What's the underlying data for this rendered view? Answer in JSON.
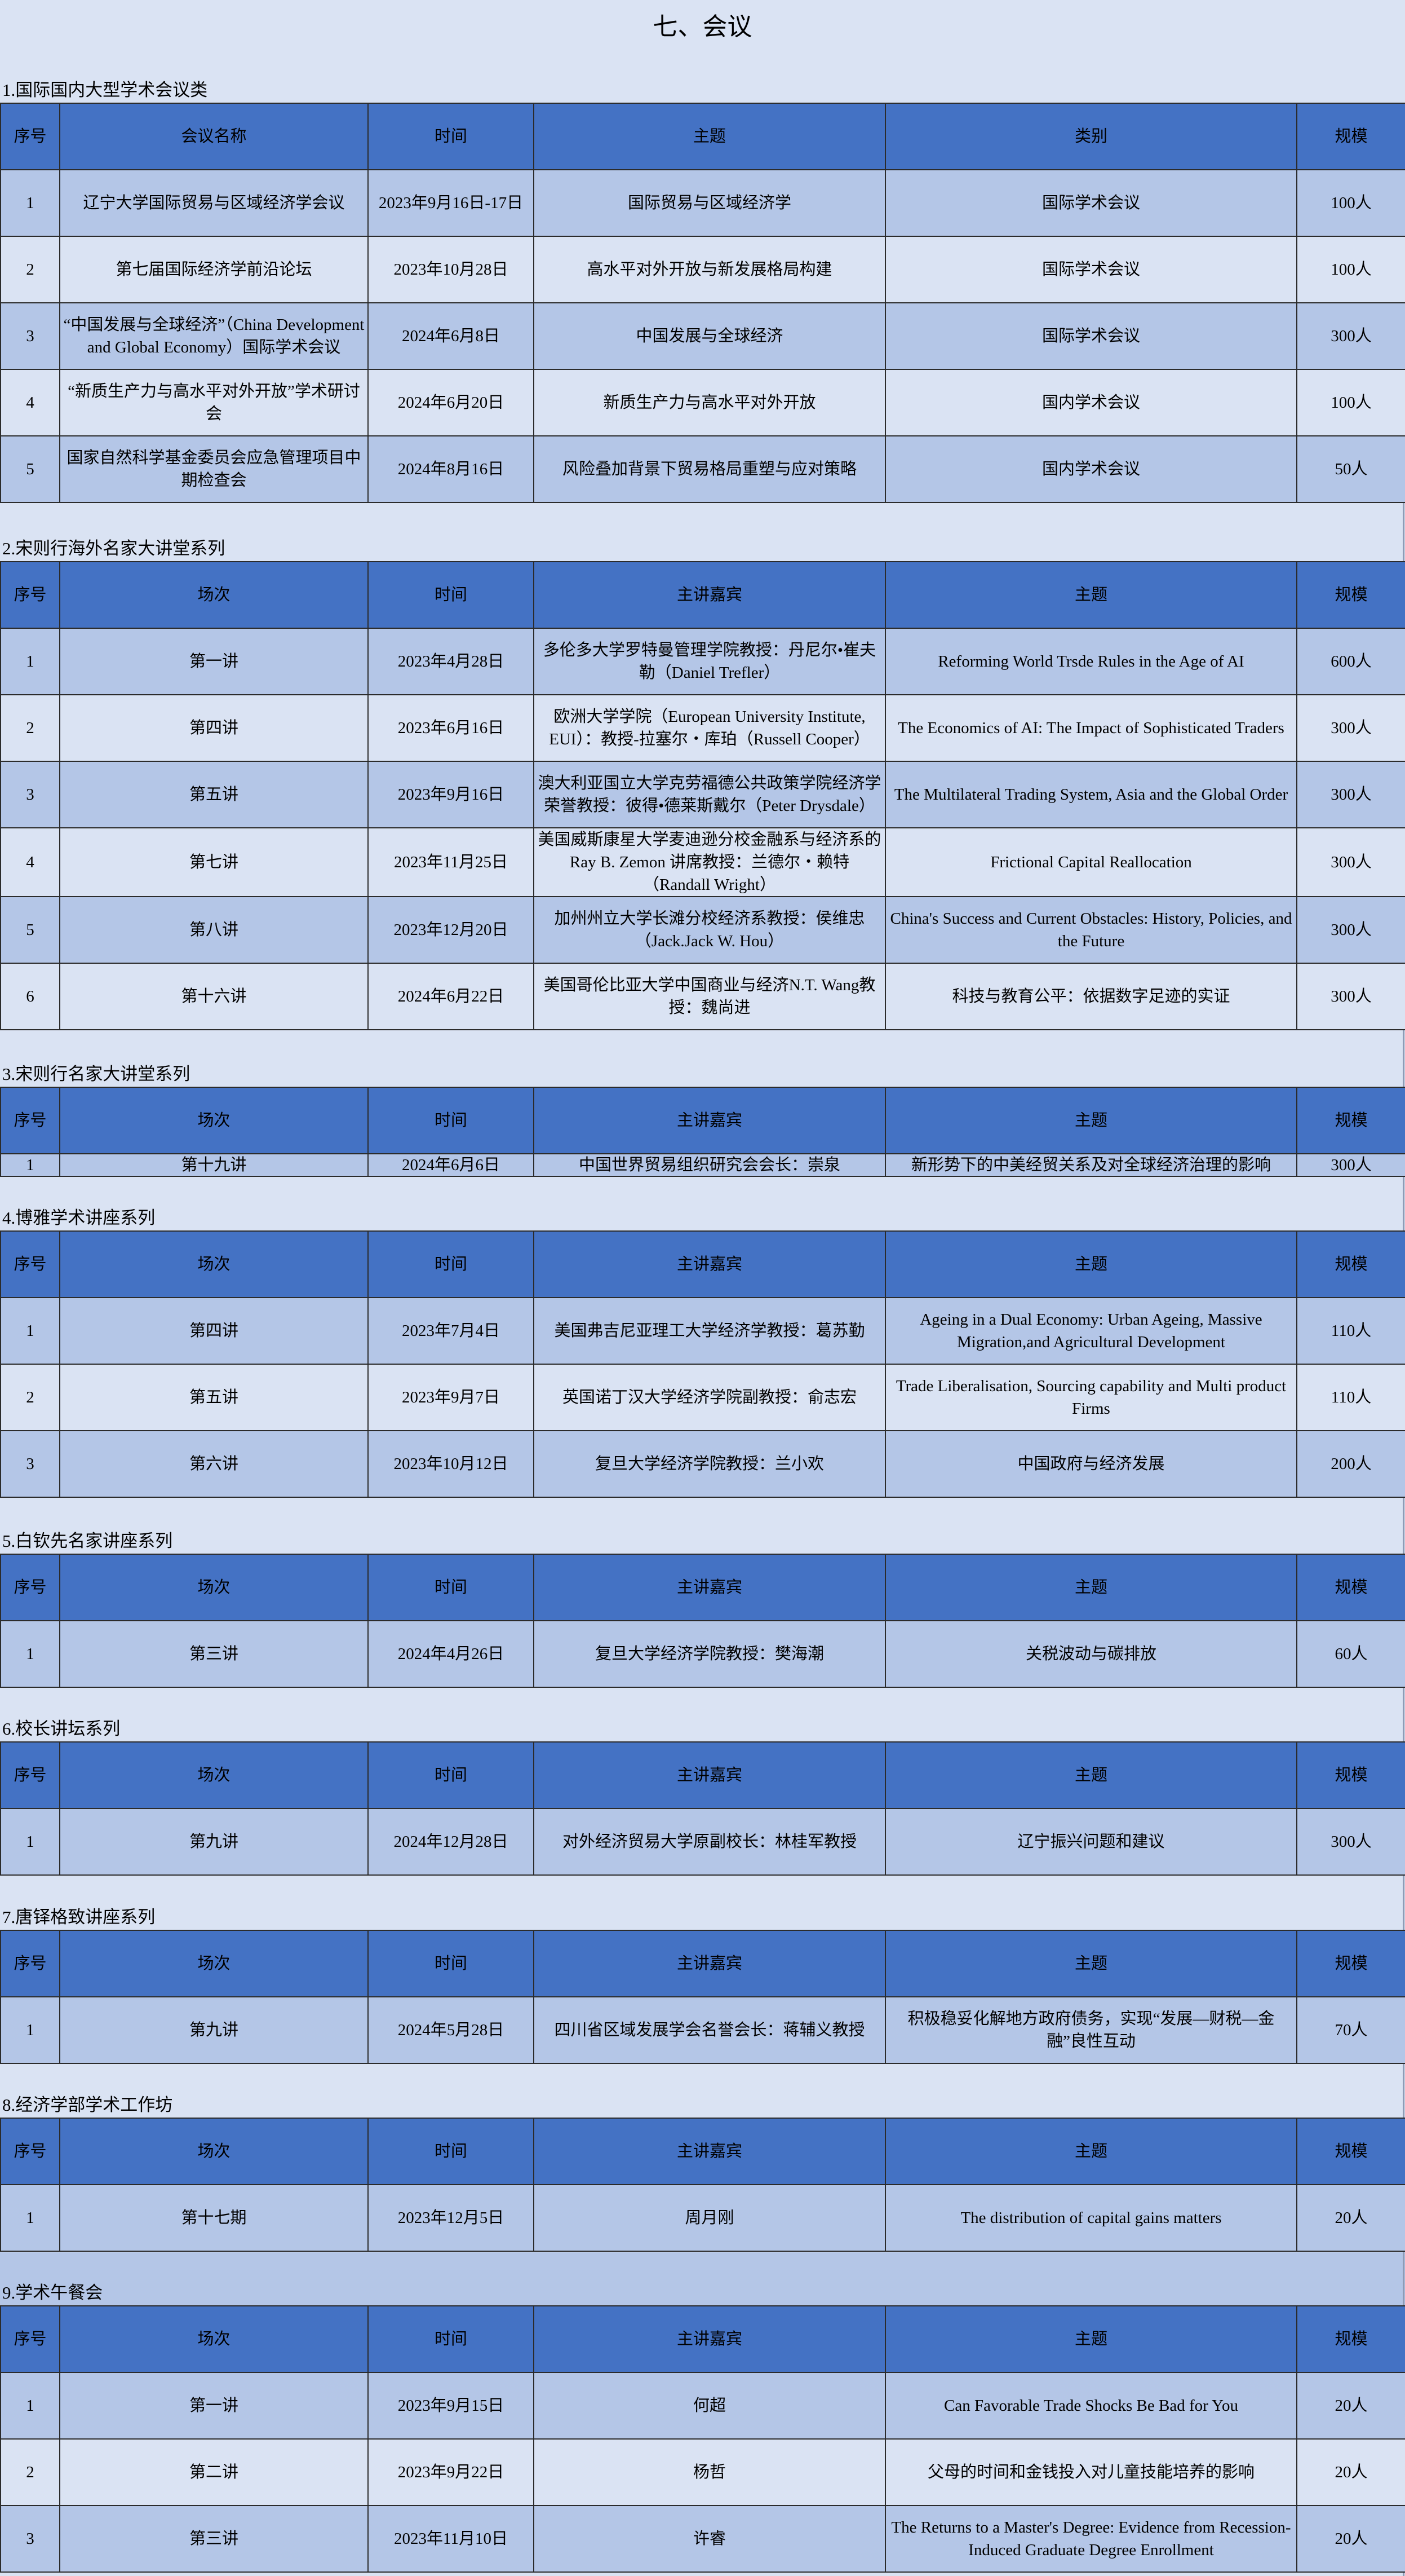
{
  "title": "七、会议",
  "colors": {
    "header_bg": "#4472c4",
    "row_odd": "#b4c6e7",
    "row_even": "#dae3f3",
    "page_bg": "#dae3f3"
  },
  "sections": [
    {
      "label": "1.国际国内大型学术会议类",
      "headers": [
        "序号",
        "会议名称",
        "时间",
        "主题",
        "类别",
        "规模"
      ],
      "rows": [
        [
          "1",
          "辽宁大学国际贸易与区域经济学会议",
          "2023年9月16日-17日",
          "国际贸易与区域经济学",
          "国际学术会议",
          "100人"
        ],
        [
          "2",
          "第七届国际经济学前沿论坛",
          "2023年10月28日",
          "高水平对外开放与新发展格局构建",
          "国际学术会议",
          "100人"
        ],
        [
          "3",
          "“中国发展与全球经济”（China Development and Global Economy）国际学术会议",
          "2024年6月8日",
          "中国发展与全球经济",
          "国际学术会议",
          "300人"
        ],
        [
          "4",
          "“新质生产力与高水平对外开放”学术研讨会",
          "2024年6月20日",
          "新质生产力与高水平对外开放",
          "国内学术会议",
          "100人"
        ],
        [
          "5",
          "国家自然科学基金委员会应急管理项目中期检查会",
          "2024年8月16日",
          "风险叠加背景下贸易格局重塑与应对策略",
          "国内学术会议",
          "50人"
        ]
      ]
    },
    {
      "label": "2.宋则行海外名家大讲堂系列",
      "headers": [
        "序号",
        "场次",
        "时间",
        "主讲嘉宾",
        "主题",
        "规模"
      ],
      "rows": [
        [
          "1",
          "第一讲",
          "2023年4月28日",
          "多伦多大学罗特曼管理学院教授：丹尼尔•崔夫勒（Daniel Trefler）",
          "Reforming World Trsde Rules in the Age of AI",
          "600人"
        ],
        [
          "2",
          "第四讲",
          "2023年6月16日",
          "欧洲大学学院（European University Institute, EUI）：教授-拉塞尔・库珀（Russell Cooper）",
          "The Economics of AI: The Impact of Sophisticated Traders",
          "300人"
        ],
        [
          "3",
          "第五讲",
          "2023年9月16日",
          "澳大利亚国立大学克劳福德公共政策学院经济学荣誉教授：彼得•德莱斯戴尔（Peter Drysdale）",
          "The Multilateral Trading System, Asia and the Global Order",
          "300人"
        ],
        [
          "4",
          "第七讲",
          "2023年11月25日",
          "美国威斯康星大学麦迪逊分校金融系与经济系的Ray B. Zemon 讲席教授：兰德尔・赖特（Randall Wright）",
          "Frictional Capital Reallocation",
          "300人"
        ],
        [
          "5",
          "第八讲",
          "2023年12月20日",
          "加州州立大学长滩分校经济系教授：侯维忠（Jack.Jack W. Hou）",
          "China's Success and Current Obstacles: History, Policies, and the Future",
          "300人"
        ],
        [
          "6",
          "第十六讲",
          "2024年6月22日",
          "美国哥伦比亚大学中国商业与经济N.T. Wang教授：魏尚进",
          "科技与教育公平：依据数字足迹的实证",
          "300人"
        ]
      ]
    },
    {
      "label": "3.宋则行名家大讲堂系列",
      "headers": [
        "序号",
        "场次",
        "时间",
        "主讲嘉宾",
        "主题",
        "规模"
      ],
      "rows": [
        [
          "1",
          "第十九讲",
          "2024年6月6日",
          "中国世界贸易组织研究会会长：崇泉",
          "新形势下的中美经贸关系及对全球经济治理的影响",
          "300人"
        ]
      ]
    },
    {
      "label": "4.博雅学术讲座系列",
      "headers": [
        "序号",
        "场次",
        "时间",
        "主讲嘉宾",
        "主题",
        "规模"
      ],
      "rows": [
        [
          "1",
          "第四讲",
          "2023年7月4日",
          "美国弗吉尼亚理工大学经济学教授：葛苏勤",
          "Ageing in a Dual Economy: Urban Ageing, Massive Migration,and Agricultural Development",
          "110人"
        ],
        [
          "2",
          "第五讲",
          "2023年9月7日",
          "英国诺丁汉大学经济学院副教授：俞志宏",
          "Trade Liberalisation, Sourcing capability and Multi product Firms",
          "110人"
        ],
        [
          "3",
          "第六讲",
          "2023年10月12日",
          "复旦大学经济学院教授：兰小欢",
          "中国政府与经济发展",
          "200人"
        ]
      ]
    },
    {
      "label": "5.白钦先名家讲座系列",
      "headers": [
        "序号",
        "场次",
        "时间",
        "主讲嘉宾",
        "主题",
        "规模"
      ],
      "rows": [
        [
          "1",
          "第三讲",
          "2024年4月26日",
          "复旦大学经济学院教授：樊海潮",
          "关税波动与碳排放",
          "60人"
        ]
      ]
    },
    {
      "label": "6.校长讲坛系列",
      "headers": [
        "序号",
        "场次",
        "时间",
        "主讲嘉宾",
        "主题",
        "规模"
      ],
      "rows": [
        [
          "1",
          "第九讲",
          "2024年12月28日",
          "对外经济贸易大学原副校长：林桂军教授",
          "辽宁振兴问题和建议",
          "300人"
        ]
      ]
    },
    {
      "label": "7.唐铎格致讲座系列",
      "headers": [
        "序号",
        "场次",
        "时间",
        "主讲嘉宾",
        "主题",
        "规模"
      ],
      "rows": [
        [
          "1",
          "第九讲",
          "2024年5月28日",
          "四川省区域发展学会名誉会长：蒋辅义教授",
          "积极稳妥化解地方政府债务，实现“发展—财税—金融”良性互动",
          "70人"
        ]
      ]
    },
    {
      "label": "8.经济学部学术工作坊",
      "headers": [
        "序号",
        "场次",
        "时间",
        "主讲嘉宾",
        "主题",
        "规模"
      ],
      "rows": [
        [
          "1",
          "第十七期",
          "2023年12月5日",
          "周月刚",
          "The distribution of capital gains matters",
          "20人"
        ]
      ]
    },
    {
      "label": "9.学术午餐会",
      "headers": [
        "序号",
        "场次",
        "时间",
        "主讲嘉宾",
        "主题",
        "规模"
      ],
      "rows": [
        [
          "1",
          "第一讲",
          "2023年9月15日",
          "何超",
          "Can Favorable Trade Shocks Be Bad for You",
          "20人"
        ],
        [
          "2",
          "第二讲",
          "2023年9月22日",
          "杨哲",
          "父母的时间和金钱投入对儿童技能培养的影响",
          "20人"
        ],
        [
          "3",
          "第三讲",
          "2023年11月10日",
          "许睿",
          "The Returns to a Master's Degree: Evidence from Recession-Induced Graduate Degree Enrollment",
          "20人"
        ]
      ]
    }
  ]
}
